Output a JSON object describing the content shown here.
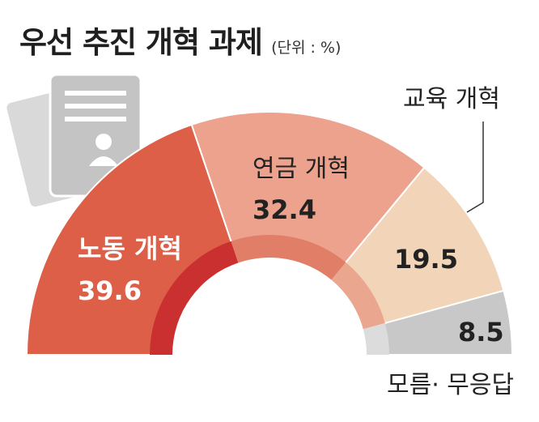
{
  "header": {
    "title": "우선 추진 개혁 과제",
    "unit": "(단위 : %)"
  },
  "chart_data": {
    "type": "pie",
    "layout": "semicircle-donut",
    "title": "우선 추진 개혁 과제",
    "unit": "%",
    "categories": [
      "노동 개혁",
      "연금 개혁",
      "교육 개혁",
      "모름· 무응답"
    ],
    "values": [
      39.6,
      32.4,
      19.5,
      8.5
    ],
    "colors": [
      "#dd5f47",
      "#eca28d",
      "#f2d4b9",
      "#c8c8c8"
    ],
    "inner_colors": [
      "#cb3030",
      "#e07e67",
      "#eba68f",
      "#dcdcdc"
    ]
  },
  "labels": {
    "noodong": {
      "name": "노동 개혁",
      "value": "39.6"
    },
    "yeongeum": {
      "name": "연금 개혁",
      "value": "32.4"
    },
    "gyoyuk": {
      "name": "교육 개혁",
      "value": "19.5"
    },
    "moreum": {
      "name": "모름· 무응답",
      "value": "8.5"
    }
  }
}
